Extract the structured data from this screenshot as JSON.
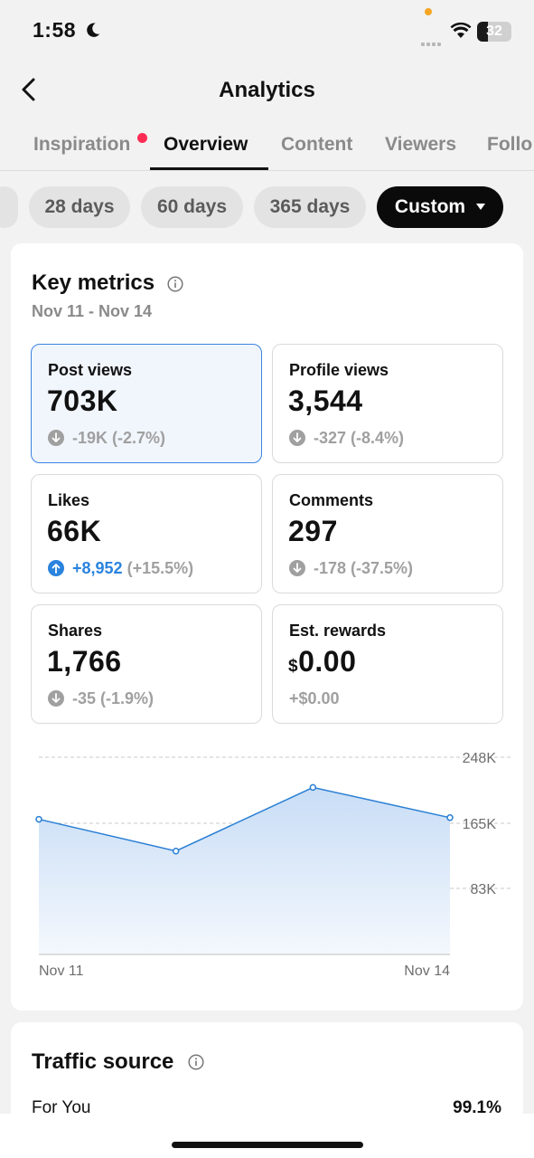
{
  "status": {
    "time": "1:58",
    "battery": "32",
    "battery_level": 0.32
  },
  "header": {
    "title": "Analytics"
  },
  "tabs": [
    {
      "label": "Inspiration",
      "active": false
    },
    {
      "label": "Overview",
      "active": true
    },
    {
      "label": "Content",
      "active": false
    },
    {
      "label": "Viewers",
      "active": false
    },
    {
      "label": "Follo",
      "active": false
    }
  ],
  "chips": [
    "28 days",
    "60 days",
    "365 days",
    "Custom"
  ],
  "key_metrics": {
    "title": "Key metrics",
    "range": "Nov 11 - Nov 14",
    "tiles": [
      {
        "label": "Post views",
        "value": "703K",
        "change": "-19K (-2.7%)",
        "direction": "down"
      },
      {
        "label": "Profile views",
        "value": "3,544",
        "change": "-327 (-8.4%)",
        "direction": "down"
      },
      {
        "label": "Likes",
        "value": "66K",
        "change_main": "+8,952",
        "change_pct": "(+15.5%)",
        "direction": "up"
      },
      {
        "label": "Comments",
        "value": "297",
        "change": "-178 (-37.5%)",
        "direction": "down"
      },
      {
        "label": "Shares",
        "value": "1,766",
        "change": "-35 (-1.9%)",
        "direction": "down"
      },
      {
        "label": "Est. rewards",
        "currency": "$",
        "value": "0.00",
        "change": "+$0.00",
        "direction": "none"
      }
    ]
  },
  "chart_data": {
    "type": "area",
    "x": [
      "Nov 11",
      "Nov 12",
      "Nov 13",
      "Nov 14"
    ],
    "values": [
      170,
      130,
      210,
      172
    ],
    "ylim": [
      0,
      248
    ],
    "y_ticks": [
      {
        "value": 248,
        "label": "248K"
      },
      {
        "value": 165,
        "label": "165K"
      },
      {
        "value": 83,
        "label": "83K"
      }
    ],
    "x_tick_labels": [
      "Nov 11",
      "Nov 14"
    ],
    "color": "#2a7fd4",
    "grid": true
  },
  "traffic": {
    "title": "Traffic source",
    "rows": [
      {
        "label": "For You",
        "value": "99.1%"
      }
    ]
  },
  "colors": {
    "accent": "#2a83de",
    "notification": "#fe2c55",
    "selected_bg": "#f1f6fd"
  }
}
